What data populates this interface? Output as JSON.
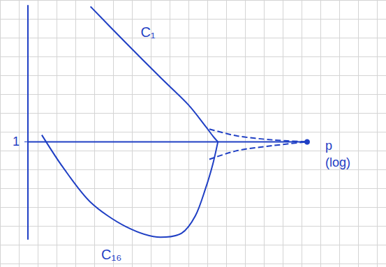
{
  "chart_data": {
    "type": "line",
    "log": "x",
    "grid": true,
    "tick_labels": "y",
    "x_label": "p (log)",
    "xlim": [
      1,
      1000
    ],
    "ylim": [
      0,
      2.4
    ],
    "yticks": [
      1
    ],
    "color": "#1f3fc4",
    "series": [
      {
        "values": [
          [
            1,
            1
          ],
          [
            1000,
            1
          ]
        ],
        "line_style": "solid",
        "marker": "dot"
      },
      {
        "values": [
          [
            4.7,
            2.39
          ],
          [
            11.2,
            2.02
          ],
          [
            26.6,
            1.66
          ],
          [
            53,
            1.38
          ],
          [
            81,
            1.16
          ],
          [
            97,
            1.06
          ],
          [
            110,
            1.0
          ]
        ],
        "line_style": "solid"
      },
      {
        "values": [
          [
            1.41,
            1.07
          ],
          [
            2.37,
            0.74
          ],
          [
            4.7,
            0.38
          ],
          [
            11.2,
            0.13
          ],
          [
            26.6,
            0.02
          ],
          [
            44.7,
            0.06
          ],
          [
            63,
            0.24
          ],
          [
            81,
            0.52
          ],
          [
            97,
            0.77
          ],
          [
            110,
            1.0
          ]
        ],
        "line_style": "solid"
      },
      {
        "values": [
          [
            89,
            1.13
          ],
          [
            178,
            1.06
          ],
          [
            422,
            1.02
          ],
          [
            1000,
            1.0
          ]
        ],
        "line_style": "dashed"
      },
      {
        "values": [
          [
            89,
            0.82
          ],
          [
            178,
            0.91
          ],
          [
            422,
            0.96
          ],
          [
            1000,
            1.0
          ]
        ],
        "line_style": "dashed"
      }
    ],
    "annotations": [
      {
        "text": "C₁",
        "x": 19.5,
        "y": 2.13
      },
      {
        "text": "C₁₆",
        "x": 7.9,
        "y": -0.16
      }
    ]
  }
}
